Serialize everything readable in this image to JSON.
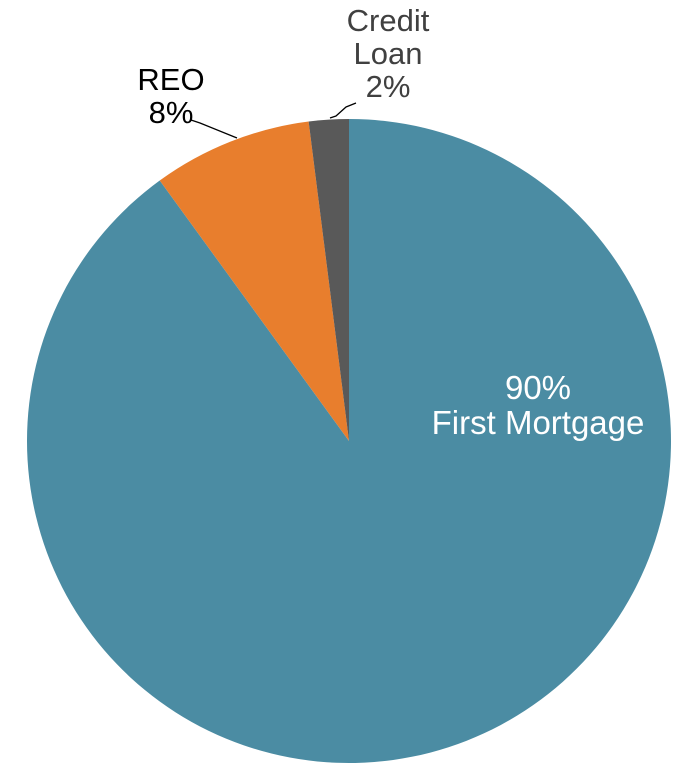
{
  "chart_data": {
    "type": "pie",
    "start_angle_deg": 0,
    "direction": "clockwise",
    "value_format": "percent",
    "legend_position": "none",
    "slices": [
      {
        "label": "First Mortgage",
        "value": 90,
        "display_value": "90%",
        "color": "#4B8CA3",
        "label_placement": "inside",
        "label_lines": [
          "90%",
          "First Mortgage"
        ],
        "label_color": "#FFFFFF",
        "leader_line": false
      },
      {
        "label": "REO",
        "value": 8,
        "display_value": "8%",
        "color": "#E87E2D",
        "label_placement": "outside-upper-left",
        "label_lines": [
          "REO",
          "8%"
        ],
        "label_color": "#000000",
        "leader_line": true
      },
      {
        "label": "Credit Loan",
        "value": 2,
        "display_value": "2%",
        "color": "#595959",
        "label_placement": "outside-top",
        "label_lines": [
          "Credit",
          "Loan",
          "2%"
        ],
        "label_color": "#404040",
        "leader_line": true
      }
    ]
  }
}
